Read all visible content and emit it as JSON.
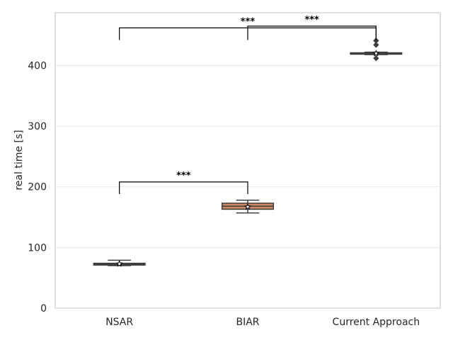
{
  "chart_data": {
    "type": "box",
    "categories": [
      "NSAR",
      "BIAR",
      "Current Approach"
    ],
    "ylabel": "real time [s]",
    "xlabel": "",
    "ylim": [
      0,
      487
    ],
    "yticks": [
      0,
      100,
      200,
      300,
      400
    ],
    "grid": "horizontal",
    "series": [
      {
        "category": "NSAR",
        "color": "#5975a4",
        "whisker_low": 70,
        "q1": 71,
        "median": 72.5,
        "q3": 74,
        "whisker_high": 79,
        "mean": 73,
        "outliers": []
      },
      {
        "category": "BIAR",
        "color": "#cc8963",
        "whisker_low": 157,
        "q1": 163,
        "median": 168,
        "q3": 173,
        "whisker_high": 178,
        "mean": 167,
        "outliers": []
      },
      {
        "category": "Current Approach",
        "color": "#5f9e6e",
        "whisker_low": 418,
        "q1": 419,
        "median": 420,
        "q3": 421,
        "whisker_high": 422,
        "mean": 420,
        "outliers": [
          412,
          434,
          441
        ]
      }
    ],
    "annotations": [
      {
        "from": "NSAR",
        "to": "BIAR",
        "text": "***",
        "y_bottom": 188,
        "y_top": 208
      },
      {
        "from": "NSAR",
        "to": "Current Approach",
        "text": "***",
        "y_bottom": 442,
        "y_top": 462
      },
      {
        "from": "BIAR",
        "to": "Current Approach",
        "text": "***",
        "y_bottom": 442,
        "y_top": 465
      }
    ]
  }
}
